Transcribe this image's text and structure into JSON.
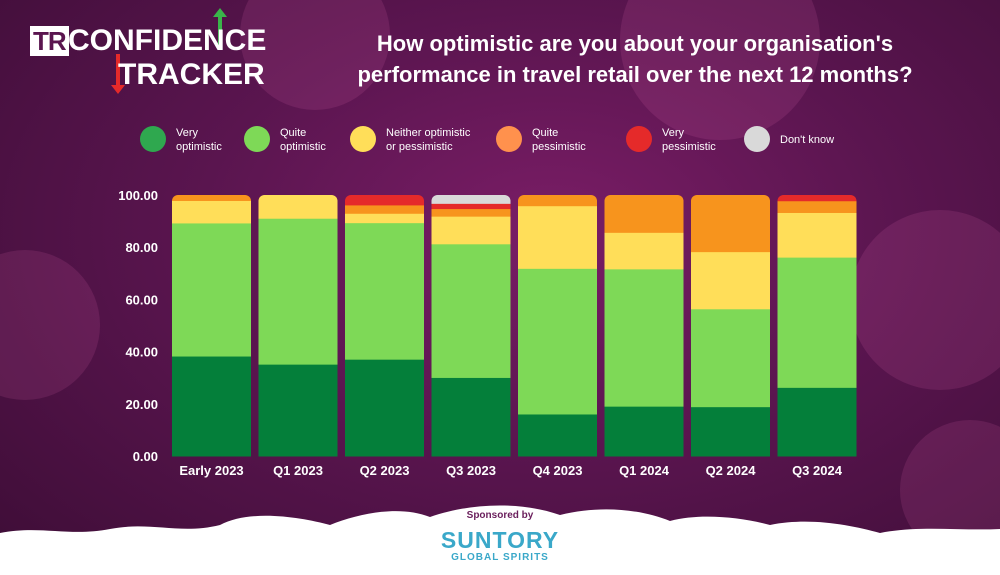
{
  "logo": {
    "tr": "TR",
    "line1": "CONFIDENCE",
    "line2": "TRACKER"
  },
  "title": {
    "line1": "How optimistic are you about your organisation's",
    "line2": "performance in travel retail over the next 12 months?"
  },
  "legend": [
    {
      "line1": "Very",
      "line2": "optimistic",
      "color": "#2fa84f"
    },
    {
      "line1": "Quite",
      "line2": "optimistic",
      "color": "#7ed957"
    },
    {
      "line1": "Neither optimistic",
      "line2": "or pessimistic",
      "color": "#ffde59"
    },
    {
      "line1": "Quite",
      "line2": "pessimistic",
      "color": "#ff914d"
    },
    {
      "line1": "Very",
      "line2": "pessimistic",
      "color": "#e52a2a"
    },
    {
      "line1": "Don't know",
      "line2": "",
      "color": "#d9d9d9"
    }
  ],
  "chart_data": {
    "type": "bar",
    "stacked": true,
    "categories": [
      "Early 2023",
      "Q1 2023",
      "Q2 2023",
      "Q3 2023",
      "Q4 2023",
      "Q1 2024",
      "Q2 2024",
      "Q3 2024"
    ],
    "series": [
      {
        "name": "Very optimistic",
        "color": "#047f3a",
        "values": [
          38.3,
          35.2,
          37.1,
          30.1,
          16.1,
          19.1,
          18.9,
          26.3
        ]
      },
      {
        "name": "Quite optimistic",
        "color": "#7ed957",
        "values": [
          51.0,
          55.9,
          52.3,
          51.2,
          55.8,
          52.6,
          37.5,
          49.9
        ]
      },
      {
        "name": "Neither optimistic or pessimistic",
        "color": "#ffde59",
        "values": [
          8.6,
          8.9,
          3.6,
          10.6,
          24.0,
          14.0,
          21.9,
          17.1
        ]
      },
      {
        "name": "Quite pessimistic",
        "color": "#f7941d",
        "values": [
          2.1,
          0,
          3.2,
          2.9,
          4.1,
          14.3,
          21.7,
          4.5
        ]
      },
      {
        "name": "Very pessimistic",
        "color": "#e52a2a",
        "values": [
          0,
          0,
          3.8,
          2.0,
          0,
          0,
          0,
          2.2
        ]
      },
      {
        "name": "Don't know",
        "color": "#d9d9d9",
        "values": [
          0,
          0,
          0,
          3.2,
          0,
          0,
          0,
          0
        ]
      }
    ],
    "yticks": [
      "100.00",
      "80.00",
      "60.00",
      "40.00",
      "20.00",
      "0.00"
    ],
    "ylim": [
      0,
      100
    ],
    "title": "How optimistic are you about your organisation's performance in travel retail over the next 12 months?",
    "xlabel": "",
    "ylabel": ""
  },
  "footer": {
    "sponsored": "Sponsored by",
    "brand": "SUNTORY",
    "brand_sub": "GLOBAL SPIRITS"
  }
}
